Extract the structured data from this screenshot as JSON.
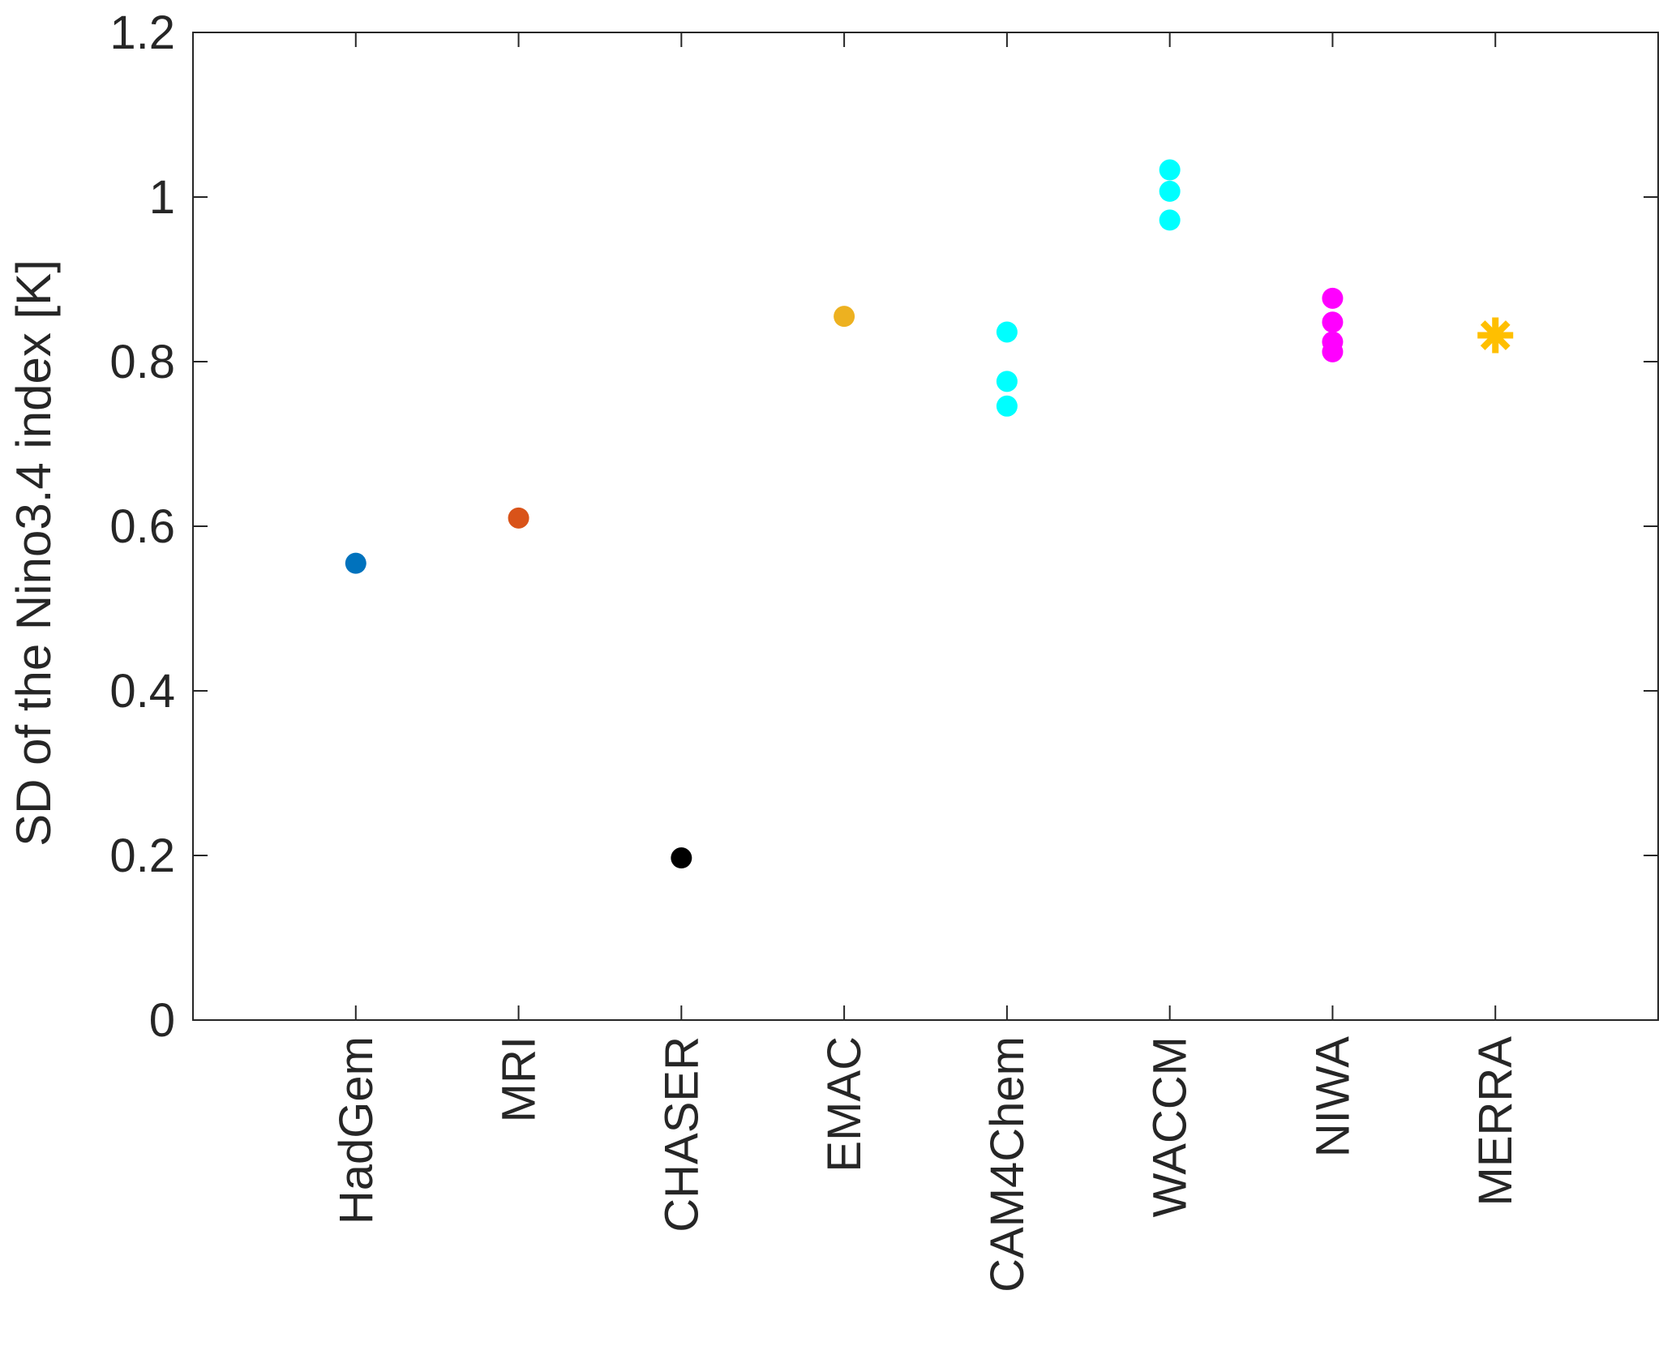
{
  "chart_data": {
    "type": "scatter",
    "title": "",
    "xlabel": "",
    "ylabel": "SD of the Nino3.4 index [K]",
    "ylim": [
      0,
      1.2
    ],
    "yticks": [
      "0",
      "0.2",
      "0.4",
      "0.6",
      "0.8",
      "1",
      "1.2"
    ],
    "xlim": [
      0,
      9
    ],
    "grid": false,
    "legend": "none",
    "categories": [
      "HadGem",
      "MRI",
      "CHASER",
      "EMAC",
      "CAM4Chem",
      "WACCM",
      "NIWA",
      "MERRA"
    ],
    "series": [
      {
        "category": "HadGem",
        "marker": "dot",
        "color": "#0072bd",
        "values": [
          0.555
        ]
      },
      {
        "category": "MRI",
        "marker": "dot",
        "color": "#d95319",
        "values": [
          0.61
        ]
      },
      {
        "category": "CHASER",
        "marker": "dot",
        "color": "#000000",
        "values": [
          0.197
        ]
      },
      {
        "category": "EMAC",
        "marker": "dot",
        "color": "#edb120",
        "values": [
          0.855
        ]
      },
      {
        "category": "CAM4Chem",
        "marker": "dot",
        "color": "#00ffff",
        "values": [
          0.836,
          0.776,
          0.746
        ]
      },
      {
        "category": "WACCM",
        "marker": "dot",
        "color": "#00ffff",
        "values": [
          1.033,
          1.007,
          0.972
        ]
      },
      {
        "category": "NIWA",
        "marker": "dot",
        "color": "#ff00ff",
        "values": [
          0.877,
          0.848,
          0.824,
          0.812
        ]
      },
      {
        "category": "MERRA",
        "marker": "asterisk",
        "color": "#ffbf00",
        "values": [
          0.832
        ]
      }
    ]
  }
}
